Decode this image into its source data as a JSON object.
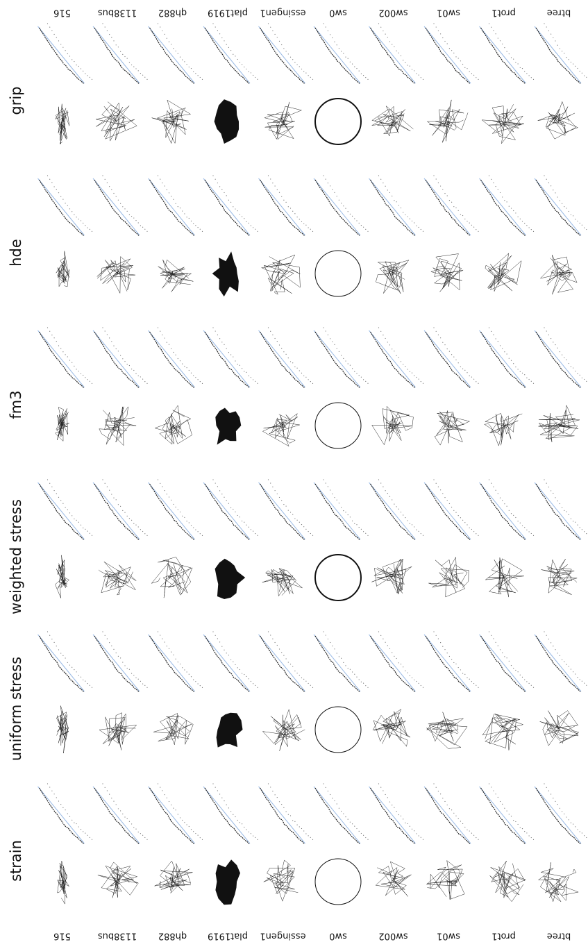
{
  "methods": [
    "strain",
    "uniform stress",
    "weighted stress",
    "fm3",
    "hde",
    "grip"
  ],
  "datasets": [
    "btree",
    "prot1",
    "sw01",
    "sw002",
    "sw0",
    "essingen1",
    "plat1919",
    "qh882",
    "1138bus",
    "516"
  ]
}
